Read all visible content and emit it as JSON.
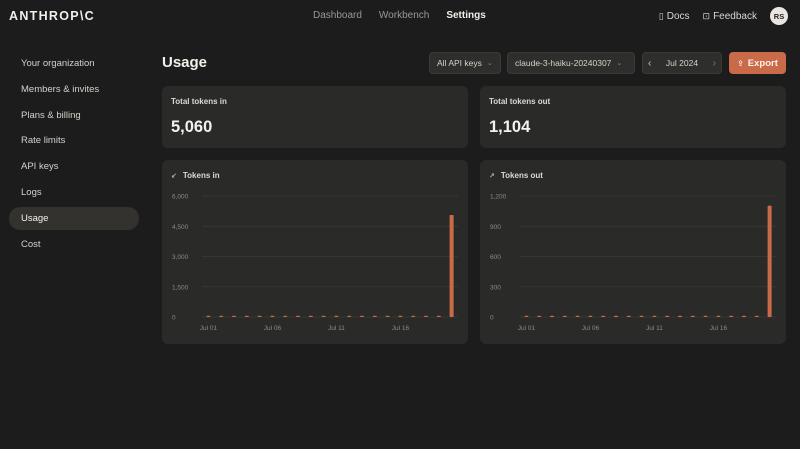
{
  "brand": "ANTHROP\\C",
  "nav": {
    "items": [
      {
        "label": "Dashboard",
        "active": false
      },
      {
        "label": "Workbench",
        "active": false
      },
      {
        "label": "Settings",
        "active": true
      }
    ]
  },
  "top_right": {
    "docs": "Docs",
    "docs_icon": "document-icon",
    "feedback": "Feedback",
    "feedback_icon": "feedback-icon",
    "avatar": "RS"
  },
  "sidebar": {
    "items": [
      {
        "label": "Your organization",
        "active": false
      },
      {
        "label": "Members & invites",
        "active": false
      },
      {
        "label": "Plans & billing",
        "active": false
      },
      {
        "label": "Rate limits",
        "active": false
      },
      {
        "label": "API keys",
        "active": false
      },
      {
        "label": "Logs",
        "active": false
      },
      {
        "label": "Usage",
        "active": true
      },
      {
        "label": "Cost",
        "active": false
      }
    ]
  },
  "header": {
    "title": "Usage",
    "api_keys_filter": "All API keys",
    "model_filter": "claude-3-haiku-20240307",
    "month": "Jul 2024",
    "export_label": "Export"
  },
  "stats": {
    "tokens_in_label": "Total tokens in",
    "tokens_in_value": "5,060",
    "tokens_out_label": "Total tokens out",
    "tokens_out_value": "1,104"
  },
  "colors": {
    "accent": "#c96a48",
    "background": "#1c1c1c",
    "card": "#2a2a28"
  },
  "chart_data": [
    {
      "type": "bar",
      "title": "Tokens in",
      "icon": "arrow-down-left-icon",
      "x": [
        "Jul 01",
        "Jul 02",
        "Jul 03",
        "Jul 04",
        "Jul 05",
        "Jul 06",
        "Jul 07",
        "Jul 08",
        "Jul 09",
        "Jul 10",
        "Jul 11",
        "Jul 12",
        "Jul 13",
        "Jul 14",
        "Jul 15",
        "Jul 16",
        "Jul 17",
        "Jul 18",
        "Jul 19",
        "Jul 20"
      ],
      "x_tick_labels": [
        "Jul 01",
        "Jul 06",
        "Jul 11",
        "Jul 16"
      ],
      "values": [
        0,
        0,
        0,
        0,
        0,
        0,
        0,
        0,
        0,
        0,
        0,
        0,
        0,
        0,
        0,
        0,
        0,
        0,
        0,
        5060
      ],
      "ylim": [
        0,
        6000
      ],
      "y_ticks": [
        "0",
        "1,500",
        "3,000",
        "4,500",
        "6,000"
      ],
      "grid": true
    },
    {
      "type": "bar",
      "title": "Tokens out",
      "icon": "arrow-up-right-icon",
      "x": [
        "Jul 01",
        "Jul 02",
        "Jul 03",
        "Jul 04",
        "Jul 05",
        "Jul 06",
        "Jul 07",
        "Jul 08",
        "Jul 09",
        "Jul 10",
        "Jul 11",
        "Jul 12",
        "Jul 13",
        "Jul 14",
        "Jul 15",
        "Jul 16",
        "Jul 17",
        "Jul 18",
        "Jul 19",
        "Jul 20"
      ],
      "x_tick_labels": [
        "Jul 01",
        "Jul 06",
        "Jul 11",
        "Jul 16"
      ],
      "values": [
        0,
        0,
        0,
        0,
        0,
        0,
        0,
        0,
        0,
        0,
        0,
        0,
        0,
        0,
        0,
        0,
        0,
        0,
        0,
        1104
      ],
      "ylim": [
        0,
        1200
      ],
      "y_ticks": [
        "0",
        "300",
        "600",
        "900",
        "1,200"
      ],
      "grid": true
    }
  ]
}
